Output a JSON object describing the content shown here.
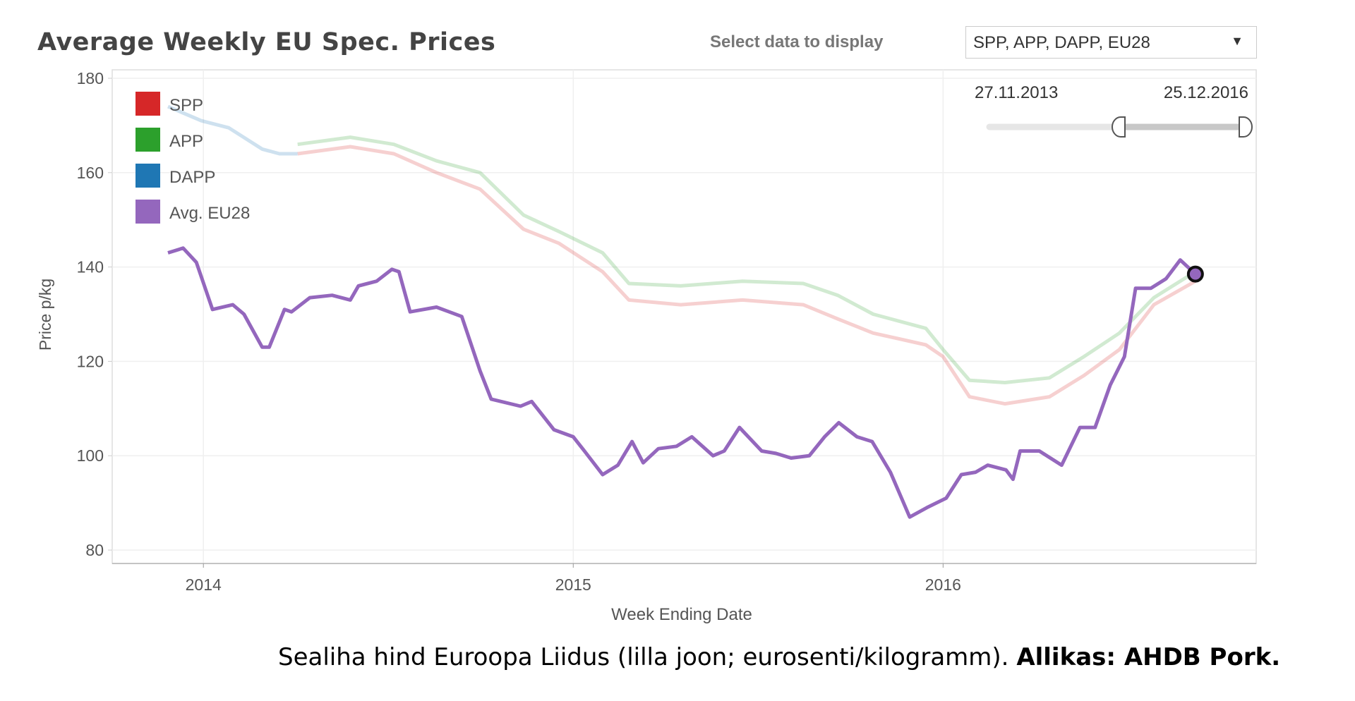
{
  "title": "Average Weekly EU Spec. Prices",
  "controls": {
    "select_label": "Select data to display",
    "dropdown_value": "SPP, APP, DAPP, EU28",
    "date_range": {
      "start": "27.11.2013",
      "end": "25.12.2016"
    }
  },
  "caption": {
    "text": "Sealiha hind Euroopa Liidus (lilla joon; eurosenti/kilogramm).",
    "source": "Allikas: AHDB Pork."
  },
  "chart_data": {
    "type": "line",
    "title": "Average Weekly EU Spec. Prices",
    "xlabel": "Week Ending Date",
    "ylabel": "Price p/kg",
    "xlim": [
      "2013-10-03",
      "2016-11-05"
    ],
    "ylim": [
      80,
      180
    ],
    "x_ticks": [
      {
        "date": "2014-01-01",
        "label": "2014"
      },
      {
        "date": "2015-01-01",
        "label": "2015"
      },
      {
        "date": "2016-01-01",
        "label": "2016"
      }
    ],
    "y_ticks": [
      80,
      100,
      120,
      140,
      160,
      180
    ],
    "grid": true,
    "legend_placement": "top-left",
    "legend": [
      {
        "label": "SPP",
        "color": "#d62728"
      },
      {
        "label": "APP",
        "color": "#2ca02c"
      },
      {
        "label": "DAPP",
        "color": "#1f77b4"
      },
      {
        "label": "Avg. EU28",
        "color": "#9467bd"
      }
    ],
    "series": [
      {
        "name": "SPP",
        "color": "#d62728",
        "faded": true,
        "points": [
          [
            "2014-04-04",
            164
          ],
          [
            "2014-05-26",
            165.5
          ],
          [
            "2014-07-08",
            164
          ],
          [
            "2014-08-19",
            160
          ],
          [
            "2014-10-01",
            156.5
          ],
          [
            "2014-11-13",
            148
          ],
          [
            "2014-12-18",
            145
          ],
          [
            "2015-01-30",
            139
          ],
          [
            "2015-02-25",
            133
          ],
          [
            "2015-04-17",
            132
          ],
          [
            "2015-06-17",
            133
          ],
          [
            "2015-08-16",
            132
          ],
          [
            "2015-09-19",
            129
          ],
          [
            "2015-10-24",
            126
          ],
          [
            "2015-12-15",
            123.5
          ],
          [
            "2016-01-01",
            121
          ],
          [
            "2016-01-27",
            112.5
          ],
          [
            "2016-03-02",
            111
          ],
          [
            "2016-04-15",
            112.5
          ],
          [
            "2016-05-19",
            117
          ],
          [
            "2016-06-23",
            122.5
          ],
          [
            "2016-07-27",
            132
          ],
          [
            "2016-09-06",
            137
          ]
        ]
      },
      {
        "name": "APP",
        "color": "#2ca02c",
        "faded": true,
        "points": [
          [
            "2014-04-04",
            166
          ],
          [
            "2014-05-26",
            167.5
          ],
          [
            "2014-07-08",
            166
          ],
          [
            "2014-08-19",
            162.5
          ],
          [
            "2014-10-01",
            160
          ],
          [
            "2014-11-13",
            151
          ],
          [
            "2014-12-18",
            147.5
          ],
          [
            "2015-01-30",
            143
          ],
          [
            "2015-02-25",
            136.5
          ],
          [
            "2015-04-17",
            136
          ],
          [
            "2015-06-17",
            137
          ],
          [
            "2015-08-16",
            136.5
          ],
          [
            "2015-09-19",
            134
          ],
          [
            "2015-10-24",
            130
          ],
          [
            "2015-12-15",
            127
          ],
          [
            "2016-01-01",
            122.5
          ],
          [
            "2016-01-27",
            116
          ],
          [
            "2016-03-02",
            115.5
          ],
          [
            "2016-04-15",
            116.5
          ],
          [
            "2016-05-19",
            121
          ],
          [
            "2016-06-23",
            126
          ],
          [
            "2016-07-27",
            133.5
          ],
          [
            "2016-09-06",
            139
          ]
        ]
      },
      {
        "name": "DAPP",
        "color": "#1f77b4",
        "faded": true,
        "points": [
          [
            "2013-11-27",
            174
          ],
          [
            "2013-12-30",
            171
          ],
          [
            "2014-01-26",
            169.5
          ],
          [
            "2014-02-28",
            165
          ],
          [
            "2014-03-17",
            164
          ],
          [
            "2014-04-04",
            164
          ]
        ]
      },
      {
        "name": "Avg. EU28",
        "color": "#9467bd",
        "faded": false,
        "points": [
          [
            "2013-11-27",
            143
          ],
          [
            "2013-12-12",
            144
          ],
          [
            "2013-12-25",
            141
          ],
          [
            "2014-01-10",
            131
          ],
          [
            "2014-01-30",
            132
          ],
          [
            "2014-02-10",
            130
          ],
          [
            "2014-02-28",
            123
          ],
          [
            "2014-03-07",
            123
          ],
          [
            "2014-03-22",
            131
          ],
          [
            "2014-03-29",
            130.5
          ],
          [
            "2014-04-16",
            133.5
          ],
          [
            "2014-05-08",
            134
          ],
          [
            "2014-05-26",
            133
          ],
          [
            "2014-06-03",
            136
          ],
          [
            "2014-06-21",
            137
          ],
          [
            "2014-07-06",
            139.5
          ],
          [
            "2014-07-13",
            139
          ],
          [
            "2014-07-24",
            130.5
          ],
          [
            "2014-08-19",
            131.5
          ],
          [
            "2014-09-13",
            129.5
          ],
          [
            "2014-10-01",
            118
          ],
          [
            "2014-10-12",
            112
          ],
          [
            "2014-11-10",
            110.5
          ],
          [
            "2014-11-21",
            111.5
          ],
          [
            "2014-12-13",
            105.5
          ],
          [
            "2015-01-01",
            104
          ],
          [
            "2015-01-12",
            101
          ],
          [
            "2015-01-30",
            96
          ],
          [
            "2015-02-14",
            98
          ],
          [
            "2015-02-28",
            103
          ],
          [
            "2015-03-11",
            98.5
          ],
          [
            "2015-03-26",
            101.5
          ],
          [
            "2015-04-13",
            102
          ],
          [
            "2015-04-28",
            104
          ],
          [
            "2015-05-19",
            100
          ],
          [
            "2015-05-30",
            101
          ],
          [
            "2015-06-14",
            106
          ],
          [
            "2015-07-06",
            101
          ],
          [
            "2015-07-20",
            100.5
          ],
          [
            "2015-08-04",
            99.5
          ],
          [
            "2015-08-22",
            100
          ],
          [
            "2015-09-06",
            104
          ],
          [
            "2015-09-20",
            107
          ],
          [
            "2015-10-08",
            104
          ],
          [
            "2015-10-23",
            103
          ],
          [
            "2015-11-10",
            96.5
          ],
          [
            "2015-11-29",
            87
          ],
          [
            "2015-12-16",
            89
          ],
          [
            "2016-01-04",
            91
          ],
          [
            "2016-01-19",
            96
          ],
          [
            "2016-02-02",
            96.5
          ],
          [
            "2016-02-14",
            98
          ],
          [
            "2016-03-03",
            97
          ],
          [
            "2016-03-10",
            95
          ],
          [
            "2016-03-17",
            101
          ],
          [
            "2016-04-05",
            101
          ],
          [
            "2016-04-27",
            98
          ],
          [
            "2016-05-15",
            106
          ],
          [
            "2016-05-30",
            106
          ],
          [
            "2016-06-14",
            115
          ],
          [
            "2016-06-28",
            121
          ],
          [
            "2016-07-09",
            135.5
          ],
          [
            "2016-07-24",
            135.5
          ],
          [
            "2016-08-08",
            137.5
          ],
          [
            "2016-08-22",
            141.5
          ],
          [
            "2016-09-06",
            138.5
          ]
        ]
      }
    ]
  }
}
